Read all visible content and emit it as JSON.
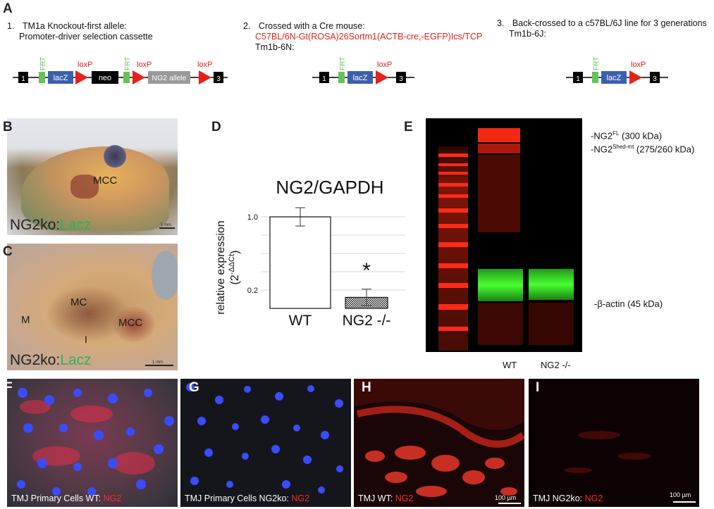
{
  "panels": {
    "A": "A",
    "B": "B",
    "C": "C",
    "D": "D",
    "E": "E",
    "F": "F",
    "G": "G",
    "H": "H",
    "I": "I"
  },
  "panelA": {
    "step1": {
      "num": "1.",
      "line1": "TM1a Knockout-first allele:",
      "line2": "Promoter-driver selection cassette"
    },
    "step2": {
      "num": "2.",
      "line1": "Crossed with a Cre mouse:",
      "line2": "C57BL/6N-Gt(ROSA)26Sortm1(ACTB-cre,-EGFP)Ics/TCP",
      "line3": "Tm1b-6N:"
    },
    "step3": {
      "num": "3.",
      "line1": "Back-crossed to a c57BL/6J line for 3 generations",
      "line2": "Tm1b-6J:"
    },
    "construct": {
      "exon1": "1",
      "exon3": "3",
      "frt": "FRT",
      "lacz": "lacZ",
      "loxp": "loxP",
      "neo": "neo",
      "ng2allele": "NG2 allele"
    }
  },
  "panelB": {
    "mcc": "MCC",
    "label_prefix": "NG2ko:",
    "label_suffix": "Lacz",
    "scale": "1 mm"
  },
  "panelC": {
    "m": "M",
    "mc": "MC",
    "mcc": "MCC",
    "i": "I",
    "label_prefix": "NG2ko:",
    "label_suffix": "Lacz",
    "scale": "1 mm"
  },
  "chart_data": {
    "type": "bar",
    "title": "NG2/GAPDH",
    "ylabel": "relative expression",
    "ylabel2": "(2",
    "ylabel2_sup": "-ΔΔCt",
    "ylabel2_end": ")",
    "categories": [
      "WT",
      "NG2 -/-"
    ],
    "values": [
      1.0,
      0.12
    ],
    "errors": [
      0.1,
      0.09
    ],
    "ylim": [
      0,
      1.2
    ],
    "yticks": [
      0.2,
      0.4,
      0.6,
      0.8,
      1.0
    ],
    "ytick_labels": [
      "0.2",
      "",
      "",
      "",
      "1.0"
    ],
    "significance": "*",
    "grid": true
  },
  "panelE": {
    "ng2fl_prefix": "-NG2",
    "ng2fl_sup": "FL",
    "ng2fl_suffix": " (300 kDa)",
    "ng2shed_prefix": "-NG2",
    "ng2shed_sup": "Shed-mt",
    "ng2shed_suffix": " (275/260 kDa)",
    "actin": "-β-actin  (45 kDa)",
    "lane_wt": "WT",
    "lane_ko": "NG2 -/-"
  },
  "panelF": {
    "cap_prefix": "TMJ Primary Cells WT: ",
    "cap_red": "NG2"
  },
  "panelG": {
    "cap_prefix": "TMJ Primary Cells NG2ko: ",
    "cap_red": "NG2"
  },
  "panelH": {
    "cap_prefix": "TMJ WT: ",
    "cap_red": "NG2",
    "scale": "100 µm"
  },
  "panelI": {
    "cap_prefix": "TMJ NG2ko: ",
    "cap_red": "NG2",
    "scale": "100 µm"
  },
  "colors": {
    "red": "#e3221c",
    "green": "#2fb05a",
    "lacz_blue": "#3b5fae",
    "nucleus_blue": "#3a4cff"
  }
}
